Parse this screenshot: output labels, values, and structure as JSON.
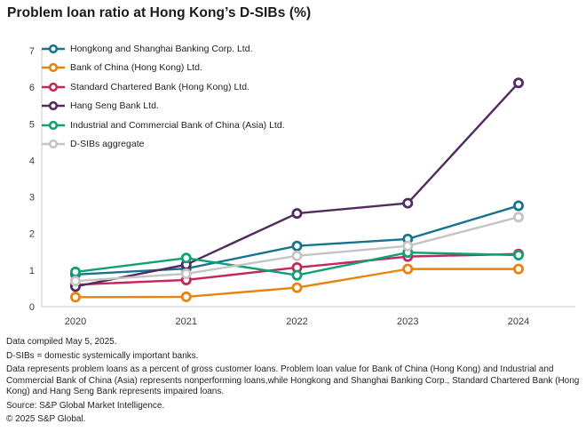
{
  "title": "Problem loan ratio at Hong Kong’s D-SIBs (%)",
  "axis": {
    "line_color": "#c9c9c9",
    "tick_color": "#3d3d3d",
    "tick_font_size": 11
  },
  "chart_data": {
    "type": "line",
    "title": "Problem loan ratio at Hong Kong’s D-SIBs (%)",
    "xlabel": "",
    "ylabel": "",
    "ylim": [
      0,
      7
    ],
    "yticks": [
      0,
      1,
      2,
      3,
      4,
      5,
      6,
      7
    ],
    "grid": false,
    "marker": "open-circle",
    "legend_position": "inside-top-left",
    "categories": [
      "2020",
      "2021",
      "2022",
      "2023",
      "2024"
    ],
    "series": [
      {
        "id": "hsbc",
        "name": "Hongkong and Shanghai Banking Corp. Ltd.",
        "color": "#17738f",
        "values": [
          0.88,
          1.04,
          1.66,
          1.85,
          2.76
        ]
      },
      {
        "id": "boc",
        "name": "Bank of China (Hong Kong) Ltd.",
        "color": "#e8830e",
        "values": [
          0.26,
          0.27,
          0.52,
          1.03,
          1.03
        ]
      },
      {
        "id": "scb",
        "name": "Standard Chartered Bank (Hong Kong) Ltd.",
        "color": "#c4265e",
        "values": [
          0.6,
          0.73,
          1.07,
          1.37,
          1.44
        ]
      },
      {
        "id": "hang-seng",
        "name": "Hang Seng Bank Ltd.",
        "color": "#522a5e",
        "values": [
          0.55,
          1.15,
          2.55,
          2.83,
          6.12
        ]
      },
      {
        "id": "icbc",
        "name": "Industrial and Commercial Bank of China (Asia) Ltd.",
        "color": "#10a074",
        "values": [
          0.95,
          1.33,
          0.86,
          1.48,
          1.41
        ]
      },
      {
        "id": "aggregate",
        "name": "D-SIBs aggregate",
        "color": "#c4c4c4",
        "values": [
          0.7,
          0.9,
          1.39,
          1.66,
          2.45
        ]
      }
    ]
  },
  "footnotes": [
    "Data compiled May 5, 2025.",
    "D-SIBs = domestic systemically important banks.",
    "Data represents problem loans as a percent of gross customer loans. Problem loan value for Bank of China (Hong Kong) and Industrial and Commercial Bank of China (Asia) represents nonperforming loans,while Hongkong and Shanghai Banking Corp., Standard Chartered Bank (Hong Kong) and Hang Seng Bank represents impaired loans.",
    "Source: S&P Global Market Intelligence.",
    "© 2025 S&P Global."
  ]
}
